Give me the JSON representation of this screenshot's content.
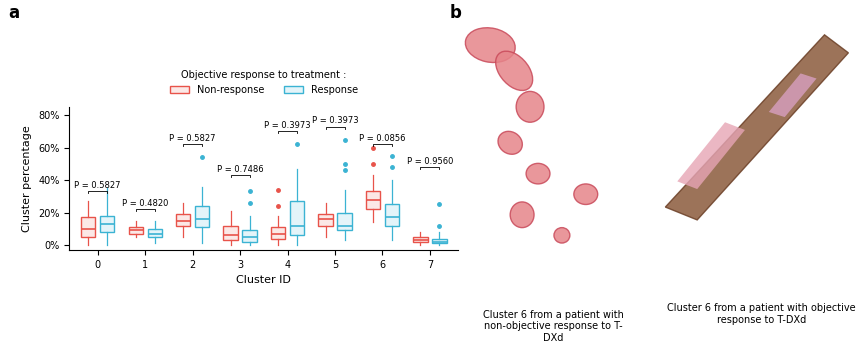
{
  "chart_data": {
    "type": "box",
    "panel_label": "a",
    "x_label": "Cluster ID",
    "y_label": "Cluster percentage",
    "legend_title": "Objective response to treatment :",
    "legend": "upper center",
    "categories": [
      "0",
      "1",
      "2",
      "3",
      "4",
      "5",
      "6",
      "7"
    ],
    "ylim": [
      -3,
      85
    ],
    "yticks": [
      {
        "value": 0,
        "label": "0%"
      },
      {
        "value": 20,
        "label": "20%"
      },
      {
        "value": 40,
        "label": "40%"
      },
      {
        "value": 60,
        "label": "60%"
      },
      {
        "value": 80,
        "label": "80%"
      }
    ],
    "series": [
      {
        "name": "Non-response",
        "color": "#e8534a",
        "stats": [
          {
            "q1": 5,
            "med": 10,
            "q3": 17,
            "whislo": 0,
            "whishi": 27,
            "fliers": []
          },
          {
            "q1": 7,
            "med": 9,
            "q3": 11,
            "whislo": 5,
            "whishi": 15,
            "fliers": []
          },
          {
            "q1": 12,
            "med": 15,
            "q3": 19,
            "whislo": 5,
            "whishi": 26,
            "fliers": []
          },
          {
            "q1": 3,
            "med": 6,
            "q3": 12,
            "whislo": 0,
            "whishi": 21,
            "fliers": []
          },
          {
            "q1": 4,
            "med": 7,
            "q3": 11,
            "whislo": 0,
            "whishi": 18,
            "fliers": [
              24,
              34
            ]
          },
          {
            "q1": 12,
            "med": 16,
            "q3": 19,
            "whislo": 5,
            "whishi": 26,
            "fliers": []
          },
          {
            "q1": 22,
            "med": 28,
            "q3": 33,
            "whislo": 14,
            "whishi": 43,
            "fliers": [
              50,
              60
            ]
          },
          {
            "q1": 2,
            "med": 3,
            "q3": 5,
            "whislo": 0,
            "whishi": 8,
            "fliers": []
          }
        ]
      },
      {
        "name": "Response",
        "color": "#3bb3d3",
        "stats": [
          {
            "q1": 8,
            "med": 13,
            "q3": 18,
            "whislo": 0,
            "whishi": 35,
            "fliers": []
          },
          {
            "q1": 5,
            "med": 7,
            "q3": 10,
            "whislo": 1,
            "whishi": 15,
            "fliers": []
          },
          {
            "q1": 11,
            "med": 16,
            "q3": 24,
            "whislo": 1,
            "whishi": 36,
            "fliers": [
              54
            ]
          },
          {
            "q1": 2,
            "med": 5,
            "q3": 9,
            "whislo": 0,
            "whishi": 18,
            "fliers": [
              26,
              33
            ]
          },
          {
            "q1": 6,
            "med": 12,
            "q3": 27,
            "whislo": 0,
            "whishi": 47,
            "fliers": [
              62
            ]
          },
          {
            "q1": 9,
            "med": 12,
            "q3": 20,
            "whislo": 3,
            "whishi": 34,
            "fliers": [
              46,
              50,
              65
            ]
          },
          {
            "q1": 12,
            "med": 17,
            "q3": 25,
            "whislo": 3,
            "whishi": 40,
            "fliers": [
              48,
              55
            ]
          },
          {
            "q1": 1,
            "med": 2,
            "q3": 4,
            "whislo": 0,
            "whishi": 8,
            "fliers": [
              12,
              25
            ]
          }
        ]
      }
    ],
    "p_values": [
      "P = 0.5827",
      "P = 0.4820",
      "P = 0.5827",
      "P = 0.7486",
      "P = 0.3973",
      "P = 0.3973",
      "P = 0.0856",
      "P = 0.9560"
    ],
    "bracket_y": [
      33,
      22,
      62,
      43,
      70,
      73,
      62,
      48
    ]
  },
  "panel_b": {
    "label": "b",
    "captions": [
      "Cluster 6 from a patient with\nnon-objective response to T-\nDXd",
      "Cluster 6 from a patient with objective\nresponse to T-DXd"
    ]
  }
}
